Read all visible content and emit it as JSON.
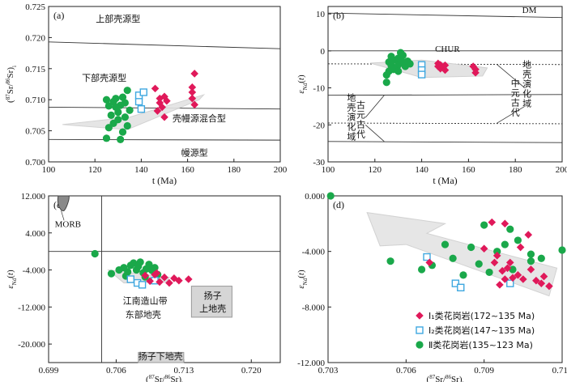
{
  "figure": {
    "title": ""
  },
  "chart_data": [
    {
      "id": "a",
      "type": "scatter",
      "panel_label": "(a)",
      "xlabel": "t (Ma)",
      "ylabel": "(87Sr/86Sr)i",
      "xlim": [
        100,
        200
      ],
      "ylim": [
        0.7,
        0.725
      ],
      "xticks": [
        100,
        120,
        140,
        160,
        180,
        200
      ],
      "yticks": [
        0.7,
        0.705,
        0.71,
        0.715,
        0.72,
        0.725
      ],
      "lines": [
        {
          "name": "upper",
          "x": [
            100,
            200
          ],
          "y": [
            0.7193,
            0.7182
          ]
        },
        {
          "name": "middle",
          "x": [
            100,
            200
          ],
          "y": [
            0.7088,
            0.7085
          ]
        },
        {
          "name": "lower",
          "x": [
            100,
            200
          ],
          "y": [
            0.7036,
            0.7035
          ]
        }
      ],
      "annotations": [
        "上部壳源型",
        "下部壳源型",
        "壳幔源混合型",
        "幔源型"
      ],
      "series": [
        {
          "name": "",
          "marker": "circle",
          "color": "#1aa84a",
          "points": [
            [
              125,
              0.7038
            ],
            [
              126,
              0.7055
            ],
            [
              127,
              0.7075
            ],
            [
              128,
              0.7097
            ],
            [
              129,
              0.7102
            ],
            [
              129,
              0.7088
            ],
            [
              130,
              0.7068
            ],
            [
              130,
              0.708
            ],
            [
              131,
              0.7091
            ],
            [
              132,
              0.7104
            ],
            [
              132,
              0.7048
            ],
            [
              133,
              0.7072
            ],
            [
              133,
              0.7095
            ],
            [
              134,
              0.7115
            ],
            [
              134,
              0.7058
            ],
            [
              135,
              0.7083
            ],
            [
              126,
              0.709
            ],
            [
              125,
              0.71
            ],
            [
              128,
              0.7062
            ],
            [
              131,
              0.7036
            ]
          ]
        },
        {
          "name": "",
          "marker": "square",
          "color": "#3fa8e0",
          "points": [
            [
              139,
              0.7097
            ],
            [
              139,
              0.7107
            ],
            [
              140,
              0.7085
            ],
            [
              141,
              0.7112
            ]
          ]
        },
        {
          "name": "",
          "marker": "diamond",
          "color": "#e0195a",
          "points": [
            [
              147,
              0.7082
            ],
            [
              148,
              0.7095
            ],
            [
              148,
              0.7102
            ],
            [
              149,
              0.7088
            ],
            [
              150,
              0.7072
            ],
            [
              150,
              0.7105
            ],
            [
              146,
              0.7118
            ],
            [
              151,
              0.7098
            ],
            [
              162,
              0.7102
            ],
            [
              162,
              0.712
            ],
            [
              163,
              0.7142
            ],
            [
              163,
              0.7092
            ],
            [
              162,
              0.7112
            ]
          ]
        }
      ]
    },
    {
      "id": "b",
      "type": "scatter",
      "panel_label": "(b)",
      "xlabel": "t (Ma)",
      "ylabel": "εNd(t)",
      "xlim": [
        100,
        200
      ],
      "ylim": [
        -30,
        12
      ],
      "xticks": [
        100,
        120,
        140,
        160,
        180,
        200
      ],
      "yticks": [
        -30,
        -20,
        -10,
        0,
        10
      ],
      "lines": [
        {
          "name": "DM",
          "x": [
            100,
            200
          ],
          "y": [
            10.2,
            9.0
          ]
        },
        {
          "name": "CHUR",
          "x": [
            100,
            200
          ],
          "y": [
            0,
            0
          ]
        },
        {
          "name": "upper-dashed",
          "x": [
            100,
            200
          ],
          "y": [
            -3.5,
            -3.7
          ],
          "dashed": true
        },
        {
          "name": "mid-solid",
          "x": [
            100,
            200
          ],
          "y": [
            -12,
            -11.8
          ]
        },
        {
          "name": "lower-dashed",
          "x": [
            100,
            200
          ],
          "y": [
            -19.5,
            -19.7
          ],
          "dashed": true
        },
        {
          "name": "bottom-solid",
          "x": [
            100,
            200
          ],
          "y": [
            -24.5,
            -24.8
          ]
        }
      ],
      "annotations": [
        "DM",
        "CHUR",
        "中元古代地壳演化域",
        "古元古代地壳演化域"
      ],
      "series": [
        {
          "name": "",
          "marker": "circle",
          "color": "#1aa84a",
          "points": [
            [
              125,
              -8.5
            ],
            [
              125,
              -6.5
            ],
            [
              126,
              -5.5
            ],
            [
              126,
              -3.0
            ],
            [
              127,
              -4.0
            ],
            [
              127,
              -1.5
            ],
            [
              128,
              -2.5
            ],
            [
              129,
              -4.5
            ],
            [
              130,
              -3.8
            ],
            [
              130,
              -2.0
            ],
            [
              131,
              -0.5
            ],
            [
              132,
              -3.0
            ],
            [
              132,
              -1.2
            ],
            [
              133,
              -4.2
            ],
            [
              134,
              -2.8
            ],
            [
              135,
              -3.5
            ],
            [
              128,
              -5.0
            ],
            [
              130,
              -5.5
            ]
          ]
        },
        {
          "name": "",
          "marker": "square",
          "color": "#3fa8e0",
          "points": [
            [
              140,
              -3.8
            ],
            [
              140,
              -5.2
            ],
            [
              140,
              -6.4
            ]
          ]
        },
        {
          "name": "",
          "marker": "diamond",
          "color": "#e0195a",
          "points": [
            [
              147,
              -3.4
            ],
            [
              147,
              -4.2
            ],
            [
              148,
              -3.8
            ],
            [
              148,
              -4.8
            ],
            [
              149,
              -4.4
            ],
            [
              150,
              -5.2
            ],
            [
              150,
              -3.9
            ],
            [
              162,
              -4.2
            ],
            [
              163,
              -5.0
            ],
            [
              163,
              -5.9
            ]
          ]
        }
      ]
    },
    {
      "id": "c",
      "type": "scatter",
      "panel_label": "(c)",
      "xlabel": "(87Sr/86Sr)i",
      "ylabel": "εNd(t)",
      "xlim": [
        0.699,
        0.723
      ],
      "ylim": [
        -24,
        12
      ],
      "xticks": [
        0.699,
        0.706,
        0.713,
        0.72
      ],
      "yticks": [
        12,
        4,
        -4,
        -12,
        -20
      ],
      "reference_lines": {
        "x": 0.7045,
        "y": 0
      },
      "annotations": [
        "MORB",
        "江南造山带东部地壳",
        "扬子上地壳",
        "扬子下地壳"
      ],
      "series": [
        {
          "name": "",
          "marker": "circle",
          "color": "#1aa84a",
          "points": [
            [
              0.7038,
              -0.5
            ],
            [
              0.7055,
              -4.8
            ],
            [
              0.7063,
              -4.0
            ],
            [
              0.7068,
              -3.5
            ],
            [
              0.7072,
              -4.4
            ],
            [
              0.7075,
              -3.0
            ],
            [
              0.7078,
              -2.5
            ],
            [
              0.7081,
              -4.0
            ],
            [
              0.7083,
              -3.2
            ],
            [
              0.7085,
              -2.3
            ],
            [
              0.7088,
              -4.6
            ],
            [
              0.7091,
              -3.8
            ],
            [
              0.7094,
              -2.8
            ],
            [
              0.7097,
              -4.1
            ],
            [
              0.71,
              -3.5
            ],
            [
              0.7103,
              -5.0
            ],
            [
              0.707,
              -5.3
            ],
            [
              0.709,
              -5.5
            ]
          ]
        },
        {
          "name": "",
          "marker": "square",
          "color": "#3fa8e0",
          "points": [
            [
              0.7075,
              -6.0
            ],
            [
              0.7082,
              -6.8
            ],
            [
              0.7087,
              -7.2
            ],
            [
              0.71,
              -6.3
            ]
          ]
        },
        {
          "name": "",
          "marker": "diamond",
          "color": "#e0195a",
          "points": [
            [
              0.709,
              -5.2
            ],
            [
              0.7095,
              -6.4
            ],
            [
              0.71,
              -5.0
            ],
            [
              0.7105,
              -6.6
            ],
            [
              0.711,
              -5.6
            ],
            [
              0.7115,
              -6.8
            ],
            [
              0.712,
              -5.8
            ],
            [
              0.7125,
              -6.3
            ],
            [
              0.7135,
              -6.0
            ],
            [
              0.7102,
              -4.7
            ]
          ]
        }
      ]
    },
    {
      "id": "d",
      "type": "scatter",
      "panel_label": "(d)",
      "xlabel": "(87Sr/86Sr)i",
      "ylabel": "εNd(t)",
      "xlim": [
        0.703,
        0.712
      ],
      "ylim": [
        -12,
        0
      ],
      "xticks": [
        0.703,
        0.706,
        0.709,
        0.712
      ],
      "yticks": [
        0,
        -4,
        -8,
        -12
      ],
      "series": [
        {
          "name": "Ⅱ类花岗岩(135~123 Ma)",
          "marker": "circle",
          "color": "#1aa84a",
          "points": [
            [
              0.7031,
              0.0
            ],
            [
              0.7054,
              -4.7
            ],
            [
              0.7075,
              -3.5
            ],
            [
              0.707,
              -5.0
            ],
            [
              0.7078,
              -4.5
            ],
            [
              0.7082,
              -5.7
            ],
            [
              0.7088,
              -4.9
            ],
            [
              0.7092,
              -5.5
            ],
            [
              0.7095,
              -4.0
            ],
            [
              0.7098,
              -3.5
            ],
            [
              0.7101,
              -5.3
            ],
            [
              0.7103,
              -3.2
            ],
            [
              0.7085,
              -3.7
            ],
            [
              0.709,
              -2.1
            ],
            [
              0.71,
              -2.4
            ],
            [
              0.7108,
              -4.2
            ],
            [
              0.7112,
              -4.5
            ],
            [
              0.712,
              -3.9
            ],
            [
              0.7066,
              -5.3
            ],
            [
              0.7108,
              -4.7
            ]
          ]
        },
        {
          "name": "Ⅰ₂类花岗岩(147~135 Ma)",
          "marker": "square",
          "color": "#3fa8e0",
          "points": [
            [
              0.7068,
              -4.4
            ],
            [
              0.7079,
              -6.3
            ],
            [
              0.7081,
              -6.6
            ],
            [
              0.71,
              -6.3
            ]
          ]
        },
        {
          "name": "Ⅰ₁类花岗岩(172~135 Ma)",
          "marker": "diamond",
          "color": "#e0195a",
          "points": [
            [
              0.7069,
              -4.8
            ],
            [
              0.709,
              -3.8
            ],
            [
              0.7093,
              -1.9
            ],
            [
              0.7095,
              -4.3
            ],
            [
              0.7097,
              -5.4
            ],
            [
              0.7098,
              -2.0
            ],
            [
              0.7099,
              -5.2
            ],
            [
              0.71,
              -4.8
            ],
            [
              0.7103,
              -5.7
            ],
            [
              0.7104,
              -3.7
            ],
            [
              0.7105,
              -6.0
            ],
            [
              0.7107,
              -2.8
            ],
            [
              0.7108,
              -5.3
            ],
            [
              0.711,
              -6.1
            ],
            [
              0.7112,
              -6.3
            ],
            [
              0.7115,
              -6.5
            ],
            [
              0.7098,
              -6.0
            ],
            [
              0.7094,
              -4.8
            ],
            [
              0.7101,
              -5.9
            ],
            [
              0.7113,
              -5.8
            ],
            [
              0.7096,
              -6.4
            ]
          ]
        }
      ]
    }
  ]
}
